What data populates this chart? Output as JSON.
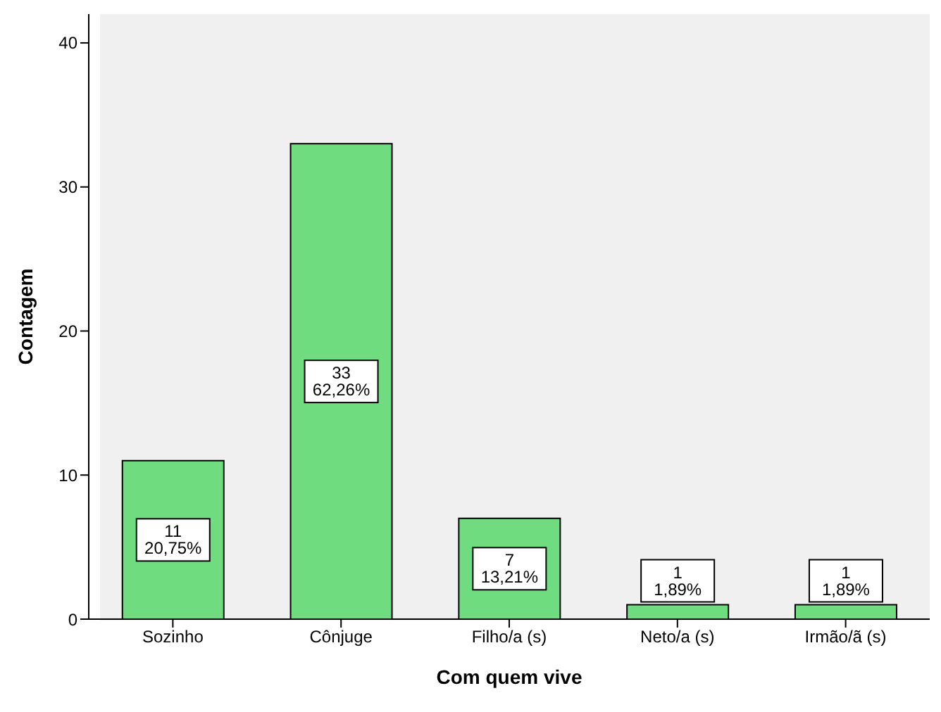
{
  "chart_data": {
    "type": "bar",
    "xlabel": "Com quem vive",
    "ylabel": "Contagem",
    "categories": [
      "Sozinho",
      "Cônjuge",
      "Filho/a (s)",
      "Neto/a (s)",
      "Irmão/ã (s)"
    ],
    "values": [
      11,
      33,
      7,
      1,
      1
    ],
    "value_labels": [
      "11\n20,75%",
      "33\n62,26%",
      "7\n13,21%",
      "1\n1,89%",
      "1\n1,89%"
    ],
    "color": "#70dc80",
    "ylim": [
      0,
      42
    ],
    "yticks": [
      0,
      10,
      20,
      30,
      40
    ],
    "grid": false,
    "legend": false
  }
}
